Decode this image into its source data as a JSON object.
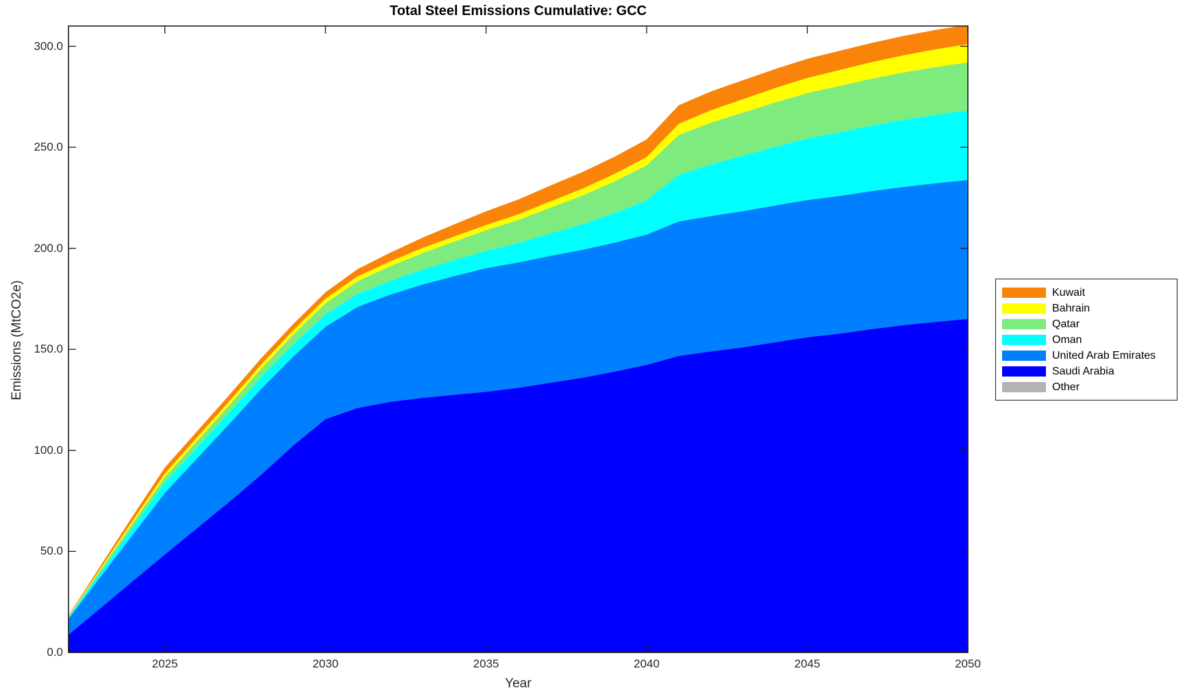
{
  "chart_data": {
    "type": "area",
    "stacked": true,
    "title": "Total Steel Emissions Cumulative: GCC",
    "xlabel": "Year",
    "ylabel": "Emissions (MtCO2e)",
    "xlim": [
      2022,
      2050
    ],
    "ylim": [
      0,
      310
    ],
    "grid": false,
    "x_ticks": [
      2025,
      2030,
      2035,
      2040,
      2045,
      2050
    ],
    "x_tick_labels": [
      "2025",
      "2030",
      "2035",
      "2040",
      "2045",
      "2050"
    ],
    "y_ticks": [
      0,
      50,
      100,
      150,
      200,
      250,
      300
    ],
    "y_tick_labels": [
      "0.0",
      "50.0",
      "100.0",
      "150.0",
      "200.0",
      "250.0",
      "300.0"
    ],
    "x": [
      2022,
      2023,
      2024,
      2025,
      2026,
      2027,
      2028,
      2029,
      2030,
      2031,
      2032,
      2033,
      2034,
      2035,
      2036,
      2037,
      2038,
      2039,
      2040,
      2041,
      2042,
      2043,
      2044,
      2045,
      2046,
      2047,
      2048,
      2049,
      2050
    ],
    "series": [
      {
        "name": "Saudi Arabia",
        "color": "#0000FF",
        "values": [
          8.8,
          22.0,
          35.3,
          48.5,
          61.5,
          74.5,
          88.0,
          102.5,
          115.5,
          121.0,
          124.0,
          126.0,
          127.5,
          129.0,
          131.0,
          133.5,
          136.0,
          139.0,
          142.4,
          146.8,
          149.0,
          151.0,
          153.5,
          156.0,
          157.8,
          160.0,
          162.0,
          163.6,
          165.1
        ]
      },
      {
        "name": "United Arab Emirates",
        "color": "#0080FF",
        "values": [
          7.8,
          15.5,
          23.0,
          30.5,
          34.5,
          38.5,
          42.5,
          44.0,
          45.7,
          50.0,
          53.0,
          56.0,
          58.7,
          61.2,
          62.0,
          62.8,
          63.3,
          63.8,
          64.4,
          66.5,
          67.0,
          67.4,
          67.7,
          67.9,
          68.1,
          68.3,
          68.4,
          68.6,
          68.7
        ]
      },
      {
        "name": "Oman",
        "color": "#00FFFF",
        "values": [
          0.7,
          2.2,
          3.7,
          5.1,
          5.4,
          5.6,
          5.8,
          6.0,
          6.1,
          6.4,
          6.8,
          7.3,
          7.9,
          8.5,
          9.6,
          11.0,
          12.6,
          14.6,
          16.9,
          23.0,
          25.5,
          27.4,
          29.0,
          30.4,
          31.5,
          32.4,
          33.2,
          33.9,
          34.4
        ]
      },
      {
        "name": "Qatar",
        "color": "#7DEB7D",
        "values": [
          0.5,
          1.2,
          2.0,
          2.7,
          3.2,
          3.7,
          4.2,
          4.8,
          5.5,
          6.3,
          7.2,
          8.2,
          9.2,
          10.2,
          11.4,
          12.8,
          14.2,
          15.7,
          17.3,
          19.8,
          20.7,
          21.4,
          22.0,
          22.5,
          22.9,
          23.2,
          23.4,
          23.6,
          23.8
        ]
      },
      {
        "name": "Bahrain",
        "color": "#FFFF00",
        "values": [
          0.2,
          0.8,
          1.3,
          1.7,
          1.8,
          1.9,
          2.0,
          2.2,
          2.3,
          2.4,
          2.4,
          2.5,
          2.5,
          2.6,
          2.8,
          3.1,
          3.4,
          3.7,
          4.1,
          5.5,
          6.1,
          6.6,
          7.1,
          7.5,
          7.9,
          8.2,
          8.5,
          8.8,
          9.0
        ]
      },
      {
        "name": "Kuwait",
        "color": "#FA8309",
        "values": [
          0.3,
          1.3,
          2.2,
          3.0,
          3.0,
          3.1,
          3.1,
          3.1,
          3.1,
          3.6,
          4.3,
          5.1,
          6.0,
          6.8,
          7.3,
          7.8,
          8.2,
          8.5,
          8.8,
          9.2,
          9.3,
          9.4,
          9.4,
          9.5,
          9.5,
          9.5,
          9.6,
          9.6,
          9.6
        ]
      },
      {
        "name": "Other",
        "color": "#B3B3B3",
        "values": [
          0,
          0,
          0,
          0,
          0,
          0,
          0,
          0,
          0,
          0,
          0,
          0,
          0,
          0,
          0,
          0,
          0,
          0,
          0,
          0,
          0,
          0,
          0,
          0,
          0,
          0,
          0,
          0,
          0
        ]
      }
    ],
    "legend": {
      "position": "right-outside",
      "entries": [
        {
          "label": "Kuwait",
          "color": "#FA8309"
        },
        {
          "label": "Bahrain",
          "color": "#FFFF00"
        },
        {
          "label": "Qatar",
          "color": "#7DEB7D"
        },
        {
          "label": "Oman",
          "color": "#00FFFF"
        },
        {
          "label": "United Arab Emirates",
          "color": "#0080FF"
        },
        {
          "label": "Saudi Arabia",
          "color": "#0000FF"
        },
        {
          "label": "Other",
          "color": "#B3B3B3"
        }
      ]
    },
    "axis_color": "#1a1a1a"
  }
}
